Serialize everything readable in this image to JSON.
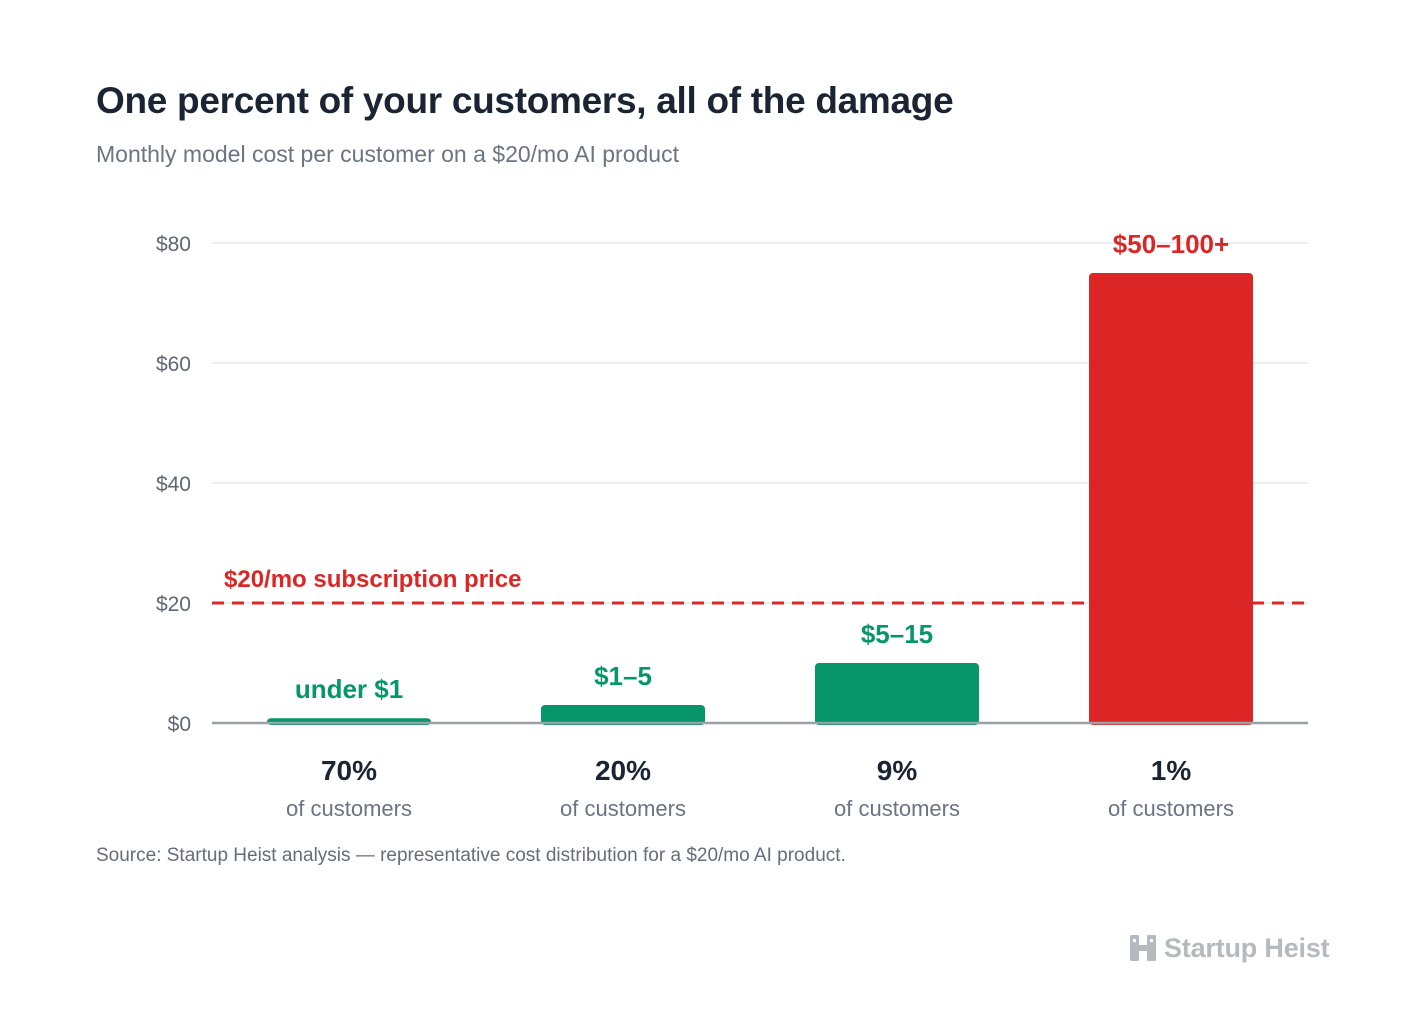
{
  "title": "One percent of your customers, all of the damage",
  "subtitle": "Monthly model cost per customer on a $20/mo AI product",
  "source": "Source: Startup Heist analysis — representative cost distribution for a $20/mo AI product.",
  "brand": {
    "name": "Startup Heist",
    "icon": "building-icon",
    "color": "#b5babf"
  },
  "colors": {
    "green": "#079669",
    "red": "#dc2626",
    "title": "#1b2433",
    "muted": "#6b7483",
    "grid": "#e5e7eb",
    "axis": "#9aa0a8"
  },
  "chart_data": {
    "type": "bar",
    "categories": [
      "70%",
      "20%",
      "9%",
      "1%"
    ],
    "category_sublabel": "of customers",
    "values": [
      0.8,
      3,
      10,
      75
    ],
    "value_labels": [
      "under $1",
      "$1–5",
      "$5–15",
      "$50–100+"
    ],
    "bar_colors": [
      "#079669",
      "#079669",
      "#079669",
      "#dc2626"
    ],
    "ylim": [
      0,
      80
    ],
    "yticks": [
      0,
      20,
      40,
      60,
      80
    ],
    "ytick_labels": [
      "$0",
      "$20",
      "$40",
      "$60",
      "$80"
    ],
    "reference_line": {
      "value": 20,
      "label": "$20/mo subscription price",
      "color": "#dc2626",
      "style": "dashed"
    },
    "grid": true,
    "legend": "none"
  }
}
